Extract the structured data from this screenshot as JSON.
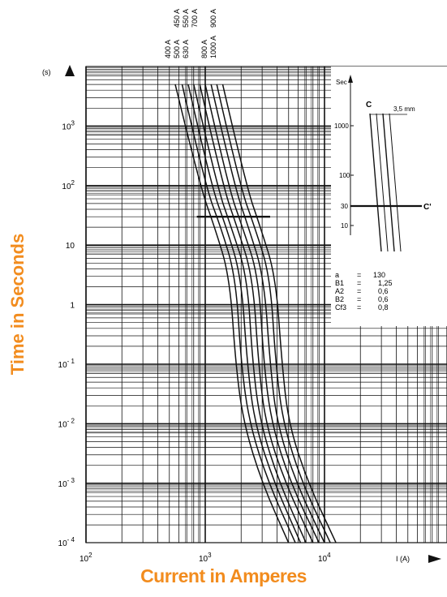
{
  "chart_data": {
    "type": "line",
    "x_scale": "log",
    "y_scale": "log",
    "xlim": [
      100,
      30000
    ],
    "ylim": [
      0.0001,
      10000
    ],
    "grid": true,
    "y_unit_label": "(s)",
    "x_unit_label": "I (A)",
    "y_title": "Time in Seconds",
    "x_title": "Current in Amperes",
    "x_ticks": [
      {
        "value": 100,
        "base": "10",
        "exp": "2"
      },
      {
        "value": 1000,
        "base": "10",
        "exp": "3"
      },
      {
        "value": 10000,
        "base": "10",
        "exp": "4"
      }
    ],
    "y_ticks": [
      {
        "value": 1000,
        "base": "10",
        "exp": "3"
      },
      {
        "value": 100,
        "base": "10",
        "exp": "2"
      },
      {
        "value": 10,
        "base": "10",
        "exp": ""
      },
      {
        "value": 1,
        "base": "1",
        "exp": ""
      },
      {
        "value": 0.1,
        "base": "10",
        "exp": "- 1"
      },
      {
        "value": 0.01,
        "base": "10",
        "exp": "- 2"
      },
      {
        "value": 0.001,
        "base": "10",
        "exp": "- 3"
      },
      {
        "value": 0.0001,
        "base": "10",
        "exp": "- 4"
      }
    ],
    "series": [
      {
        "name": "400 A",
        "points": [
          [
            560,
            5000
          ],
          [
            900,
            100
          ],
          [
            1200,
            20
          ],
          [
            1600,
            3
          ],
          [
            1800,
            0.1
          ],
          [
            2100,
            0.01
          ],
          [
            3000,
            0.001
          ],
          [
            5000,
            0.0001
          ]
        ]
      },
      {
        "name": "450 A",
        "points": [
          [
            640,
            5000
          ],
          [
            1000,
            100
          ],
          [
            1350,
            20
          ],
          [
            1800,
            3
          ],
          [
            2000,
            0.1
          ],
          [
            2350,
            0.01
          ],
          [
            3400,
            0.001
          ],
          [
            5700,
            0.0001
          ]
        ]
      },
      {
        "name": "500 A",
        "points": [
          [
            720,
            5000
          ],
          [
            1120,
            100
          ],
          [
            1500,
            20
          ],
          [
            2000,
            3
          ],
          [
            2250,
            0.1
          ],
          [
            2600,
            0.01
          ],
          [
            3800,
            0.001
          ],
          [
            6300,
            0.0001
          ]
        ]
      },
      {
        "name": "550 A",
        "points": [
          [
            800,
            5000
          ],
          [
            1250,
            100
          ],
          [
            1650,
            20
          ],
          [
            2250,
            3
          ],
          [
            2500,
            0.1
          ],
          [
            2900,
            0.01
          ],
          [
            4200,
            0.001
          ],
          [
            7000,
            0.0001
          ]
        ]
      },
      {
        "name": "630 A",
        "points": [
          [
            900,
            5000
          ],
          [
            1400,
            100
          ],
          [
            1850,
            20
          ],
          [
            2500,
            3
          ],
          [
            2800,
            0.1
          ],
          [
            3200,
            0.01
          ],
          [
            4700,
            0.001
          ],
          [
            8000,
            0.0001
          ]
        ]
      },
      {
        "name": "700 A",
        "points": [
          [
            1000,
            5000
          ],
          [
            1550,
            100
          ],
          [
            2050,
            20
          ],
          [
            2800,
            3
          ],
          [
            3100,
            0.1
          ],
          [
            3600,
            0.01
          ],
          [
            5200,
            0.001
          ],
          [
            9000,
            0.0001
          ]
        ]
      },
      {
        "name": "800 A",
        "points": [
          [
            1120,
            5000
          ],
          [
            1750,
            100
          ],
          [
            2300,
            20
          ],
          [
            3100,
            3
          ],
          [
            3500,
            0.1
          ],
          [
            4000,
            0.01
          ],
          [
            5800,
            0.001
          ],
          [
            10000,
            0.0001
          ]
        ]
      },
      {
        "name": "900 A",
        "points": [
          [
            1250,
            5000
          ],
          [
            1950,
            100
          ],
          [
            2600,
            20
          ],
          [
            3500,
            3
          ],
          [
            3900,
            0.1
          ],
          [
            4500,
            0.01
          ],
          [
            6500,
            0.001
          ],
          [
            11200,
            0.0001
          ]
        ]
      },
      {
        "name": "1000 A",
        "points": [
          [
            1400,
            5000
          ],
          [
            2200,
            100
          ],
          [
            2900,
            20
          ],
          [
            3900,
            3
          ],
          [
            4400,
            0.1
          ],
          [
            5000,
            0.01
          ],
          [
            7300,
            0.001
          ],
          [
            12500,
            0.0001
          ]
        ]
      }
    ],
    "reference_line": {
      "y": 30,
      "x_range": [
        850,
        3500
      ]
    }
  },
  "inset": {
    "y_axis_label": "Sec",
    "y_ticks": [
      "1000",
      "100",
      "30",
      "10"
    ],
    "label_c": "C",
    "label_c_prime": "C'",
    "dimension_label": "3,5 mm",
    "params": [
      {
        "name": "a",
        "eq": "=",
        "value": "130"
      },
      {
        "name": "B1",
        "eq": "=",
        "value": "1,25"
      },
      {
        "name": "A2",
        "eq": "=",
        "value": "0,6"
      },
      {
        "name": "B2",
        "eq": "=",
        "value": "0,6"
      },
      {
        "name": "Cf3",
        "eq": "=",
        "value": "0,8"
      }
    ]
  },
  "colors": {
    "title": "#f28c1e",
    "ink": "#111111"
  }
}
